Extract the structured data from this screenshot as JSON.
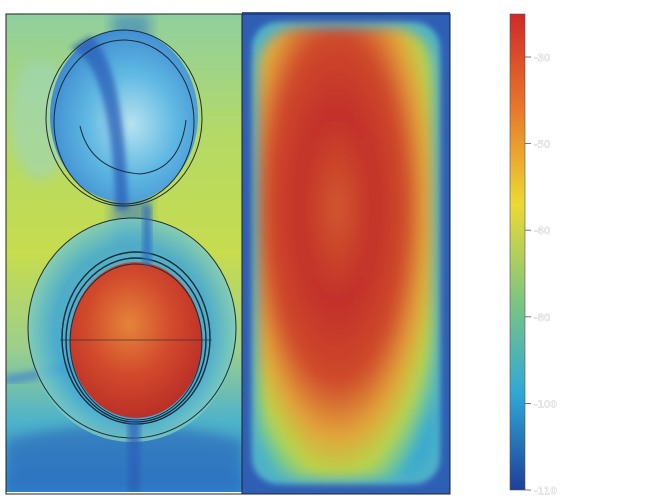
{
  "colorbar": {
    "tick_labels": [
      "-30",
      "-50",
      "-60",
      "-80",
      "-100",
      "-110"
    ],
    "colors": [
      "#cf2a27",
      "#e8782c",
      "#ecd934",
      "#7ec67e",
      "#2fa7d6",
      "#1e3f99"
    ]
  },
  "plot": {
    "field_colors": {
      "hot": "#c42a24",
      "warm": "#e06b34",
      "mid": "#c8dc4e",
      "cool": "#5ec6b4",
      "cold": "#2c6fc0",
      "deep": "#1e4fa8"
    }
  }
}
